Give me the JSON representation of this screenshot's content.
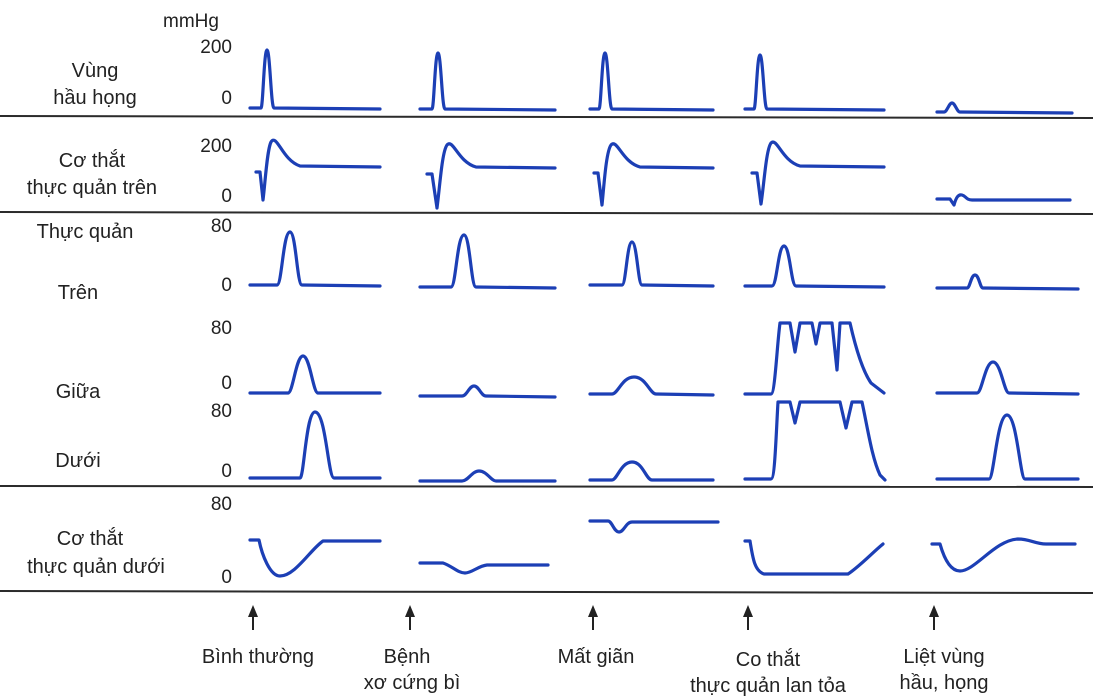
{
  "unit": "mmHg",
  "rows": [
    {
      "id": "pharynx",
      "label_lines": [
        "Vùng",
        "hầu họng"
      ],
      "tick_top": "200",
      "tick_zero": "0"
    },
    {
      "id": "ues",
      "label_lines": [
        "Cơ thắt",
        "thực quản trên"
      ],
      "tick_top": "200",
      "tick_zero": "0"
    },
    {
      "id": "eso-upper",
      "label_lines": [
        "Thực quản",
        "Trên"
      ],
      "tick_top": "80",
      "tick_zero": "0"
    },
    {
      "id": "eso-middle",
      "label_lines": [
        "Giữa"
      ],
      "tick_top": "80",
      "tick_zero": "0"
    },
    {
      "id": "eso-lower",
      "label_lines": [
        "Dưới"
      ],
      "tick_top": "80",
      "tick_zero": "0"
    },
    {
      "id": "les",
      "label_lines": [
        "Cơ thắt",
        "thực quản dưới"
      ],
      "tick_top": "80",
      "tick_zero": "0"
    }
  ],
  "conditions": [
    {
      "id": "normal",
      "label_lines": [
        "Bình thường"
      ]
    },
    {
      "id": "scleroderma",
      "label_lines": [
        "Bệnh",
        "xơ cứng bì"
      ]
    },
    {
      "id": "achalasia",
      "label_lines": [
        "Mất giãn"
      ]
    },
    {
      "id": "diffuse-spasm",
      "label_lines": [
        "Co thắt",
        "thực quản lan tỏa"
      ]
    },
    {
      "id": "pharyngeal-paralysis",
      "label_lines": [
        "Liệt vùng",
        "hầu, họng"
      ]
    }
  ],
  "colors": {
    "trace": "#1c3fb5",
    "axis": "#2b2b2b",
    "text": "#222222"
  }
}
